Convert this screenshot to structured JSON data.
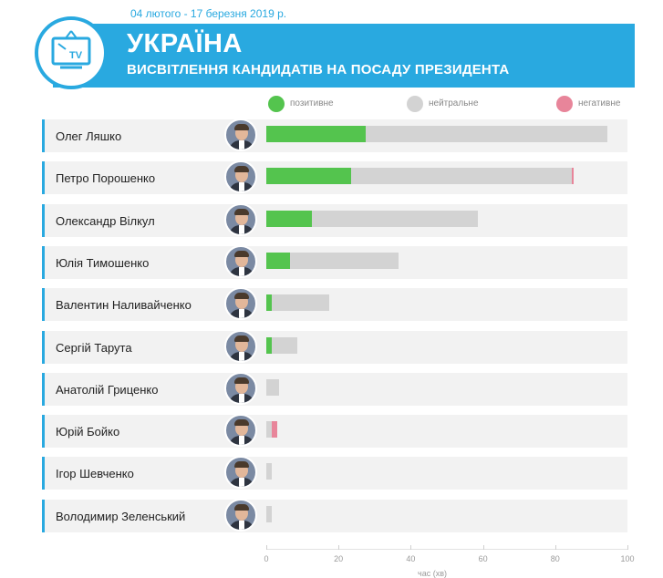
{
  "header": {
    "date_range": "04 лютого - 17 березня 2019 р.",
    "title": "УКРАЇНА",
    "subtitle": "ВИСВІТЛЕННЯ КАНДИДАТІВ НА ПОСАДУ ПРЕЗИДЕНТА",
    "tv_label": "TV",
    "accent_color": "#29a9e0"
  },
  "chart_data": {
    "type": "bar",
    "orientation": "horizontal",
    "stacked": true,
    "categories": [
      "Олег Ляшко",
      "Петро Порошенко",
      "Олександр Вілкул",
      "Юлія Тимошенко",
      "Валентин Наливайченко",
      "Сергій Тарута",
      "Анатолій Гриценко",
      "Юрій Бойко",
      "Ігор Шевченко",
      "Володимир Зеленський"
    ],
    "series": [
      {
        "name": "позитивне",
        "color": "#54c44e",
        "values": [
          27.5,
          23.5,
          12.5,
          6.5,
          1.5,
          1.5,
          0,
          0,
          0,
          0
        ]
      },
      {
        "name": "нейтральне",
        "color": "#d3d3d3",
        "values": [
          67,
          61,
          46,
          30,
          16,
          7,
          3.5,
          1.5,
          1.5,
          1.5
        ]
      },
      {
        "name": "негативне",
        "color": "#e8859a",
        "values": [
          0,
          0.5,
          0,
          0,
          0,
          0,
          0,
          1.5,
          0,
          0
        ]
      }
    ],
    "xlim": [
      0,
      100
    ],
    "xticks": [
      0,
      20,
      40,
      60,
      80,
      100
    ],
    "xlabel": "час (хв)",
    "legend_position": "top"
  }
}
